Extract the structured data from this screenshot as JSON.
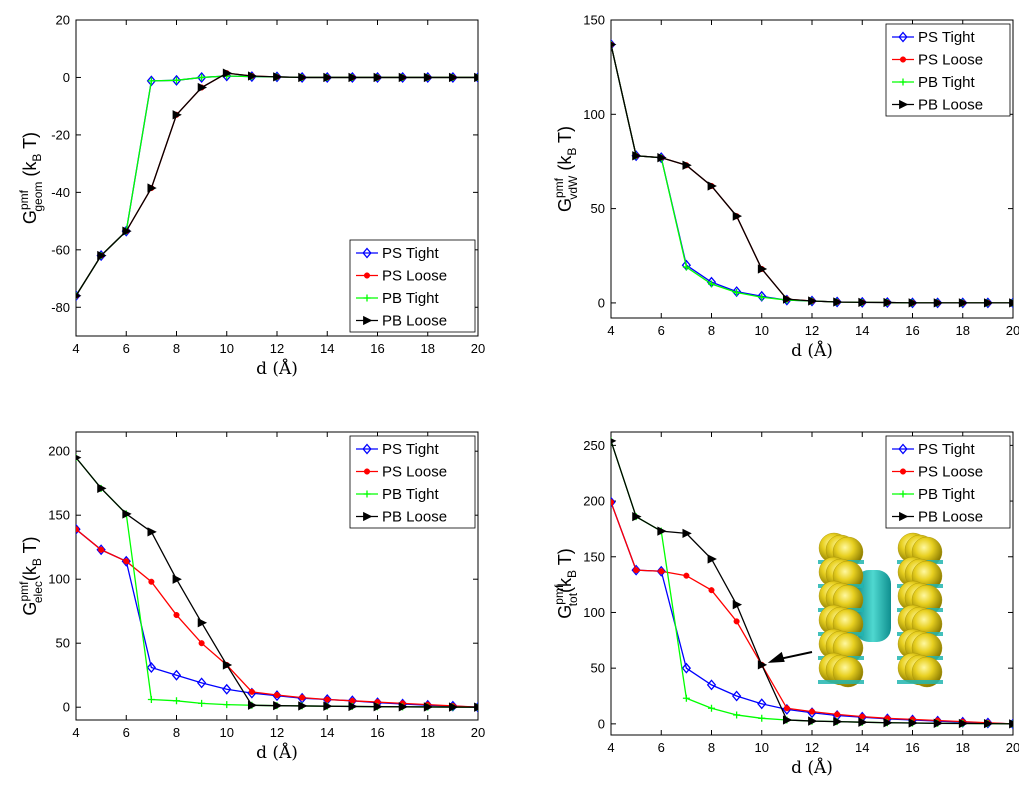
{
  "chart_data": [
    {
      "type": "line",
      "ylabel": {
        "main": "G",
        "sup": "pmf",
        "sub": "geom",
        "tail": " (k",
        "tail_sub": "B",
        "tail_end": " T)"
      },
      "xlabel": "d (Å)",
      "xlim": [
        4,
        20
      ],
      "ylim": [
        -90,
        20
      ],
      "xticks": [
        4,
        6,
        8,
        10,
        12,
        14,
        16,
        18,
        20
      ],
      "yticks": [
        -80,
        -60,
        -40,
        -20,
        0,
        20
      ],
      "grid": false,
      "legend": "bottom-right",
      "x": [
        4,
        5,
        6,
        7,
        8,
        9,
        10,
        11,
        12,
        13,
        14,
        15,
        16,
        17,
        18,
        19,
        20
      ],
      "series": [
        {
          "name": "PS Tight",
          "color": "#0000ff",
          "marker": "diamond",
          "values": [
            -76,
            -62,
            -53.5,
            -1.2,
            -1,
            0,
            0.5,
            0.3,
            0.2,
            0,
            0,
            0,
            0,
            0,
            0,
            0,
            0
          ]
        },
        {
          "name": "PS Loose",
          "color": "#ff0000",
          "marker": "dot",
          "values": [
            -76,
            -62,
            -53.5,
            -38.5,
            -13,
            -3.5,
            1.5,
            0.5,
            0.2,
            0,
            0,
            0,
            0,
            0,
            0,
            0,
            0
          ]
        },
        {
          "name": "PB Tight",
          "color": "#00ff00",
          "marker": "plus",
          "values": [
            -76,
            -62,
            -53.5,
            -1.2,
            -1,
            0,
            0.5,
            0.3,
            0.2,
            0,
            0,
            0,
            0,
            0,
            0,
            0,
            0
          ]
        },
        {
          "name": "PB Loose",
          "color": "#000000",
          "marker": "triangle",
          "values": [
            -76,
            -62,
            -53.5,
            -38.5,
            -13,
            -3.5,
            1.5,
            0.5,
            0.2,
            0,
            0,
            0,
            0,
            0,
            0,
            0,
            0
          ]
        }
      ]
    },
    {
      "type": "line",
      "ylabel": {
        "main": "G",
        "sup": "pmf",
        "sub": "vdW",
        "tail": " (k",
        "tail_sub": "B",
        "tail_end": " T)"
      },
      "xlabel": "d (Å)",
      "xlim": [
        4,
        20
      ],
      "ylim": [
        -8,
        150
      ],
      "xticks": [
        4,
        6,
        8,
        10,
        12,
        14,
        16,
        18,
        20
      ],
      "yticks": [
        0,
        50,
        100,
        150
      ],
      "grid": false,
      "legend": "top-right",
      "x": [
        4,
        5,
        6,
        7,
        8,
        9,
        10,
        11,
        12,
        13,
        14,
        15,
        16,
        17,
        18,
        19,
        20
      ],
      "series": [
        {
          "name": "PS Tight",
          "color": "#0000ff",
          "marker": "diamond",
          "values": [
            137,
            78,
            77,
            20,
            11,
            6,
            3.5,
            1.5,
            1,
            0.5,
            0.3,
            0.2,
            0,
            0,
            0,
            0,
            0
          ]
        },
        {
          "name": "PS Loose",
          "color": "#ff0000",
          "marker": "dot",
          "values": [
            137,
            78,
            77,
            73,
            62,
            46,
            18,
            2,
            1,
            0.5,
            0.3,
            0.2,
            0,
            0,
            0,
            0,
            0
          ]
        },
        {
          "name": "PB Tight",
          "color": "#00ff00",
          "marker": "plus",
          "values": [
            137,
            78,
            77,
            19,
            10,
            5.5,
            3,
            1.5,
            1,
            0.5,
            0.3,
            0.2,
            0,
            0,
            0,
            0,
            0
          ]
        },
        {
          "name": "PB Loose",
          "color": "#000000",
          "marker": "triangle",
          "values": [
            137,
            78,
            77,
            73,
            62,
            46,
            18,
            2,
            1,
            0.5,
            0.3,
            0.2,
            0,
            0,
            0,
            0,
            0
          ]
        }
      ]
    },
    {
      "type": "line",
      "ylabel": {
        "main": "G",
        "sup": "pmf",
        "sub": "elec",
        "tail": "(k",
        "tail_sub": "B",
        "tail_end": " T)"
      },
      "xlabel": "d (Å)",
      "xlim": [
        4,
        20
      ],
      "ylim": [
        -10,
        215
      ],
      "xticks": [
        4,
        6,
        8,
        10,
        12,
        14,
        16,
        18,
        20
      ],
      "yticks": [
        0,
        50,
        100,
        150,
        200
      ],
      "grid": false,
      "legend": "top-right",
      "x": [
        4,
        5,
        6,
        7,
        8,
        9,
        10,
        11,
        12,
        13,
        14,
        15,
        16,
        17,
        18,
        19,
        20
      ],
      "series": [
        {
          "name": "PS Tight",
          "color": "#0000ff",
          "marker": "diamond",
          "values": [
            139,
            123,
            114,
            31,
            25,
            19,
            14,
            11,
            9,
            7,
            6,
            5,
            3.5,
            2.5,
            1.5,
            0.8,
            0
          ]
        },
        {
          "name": "PS Loose",
          "color": "#ff0000",
          "marker": "dot",
          "values": [
            139,
            123,
            114,
            98,
            72,
            50,
            33,
            12,
            9.5,
            7.5,
            6,
            5,
            4,
            3,
            2,
            1,
            0
          ]
        },
        {
          "name": "PB Tight",
          "color": "#00ff00",
          "marker": "plus",
          "values": [
            195,
            171,
            151,
            6,
            5,
            3,
            2,
            1.5,
            1.2,
            1,
            0.8,
            0.6,
            0.4,
            0.3,
            0.2,
            0.1,
            0
          ]
        },
        {
          "name": "PB Loose",
          "color": "#000000",
          "marker": "triangle",
          "values": [
            195,
            171,
            151,
            137,
            100,
            66,
            33,
            1.5,
            1.2,
            1,
            0.8,
            0.6,
            0.4,
            0.3,
            0.2,
            0.1,
            0
          ]
        }
      ]
    },
    {
      "type": "line",
      "ylabel": {
        "main": "G",
        "sup": "pmf",
        "sub": "tot",
        "tail": "(k",
        "tail_sub": "B",
        "tail_end": " T)"
      },
      "xlabel": "d (Å)",
      "xlim": [
        4,
        20
      ],
      "ylim": [
        -10,
        262
      ],
      "xticks": [
        4,
        6,
        8,
        10,
        12,
        14,
        16,
        18,
        20
      ],
      "yticks": [
        0,
        50,
        100,
        150,
        200,
        250
      ],
      "grid": false,
      "legend": "top-right",
      "annotation": {
        "type": "arrow",
        "points_to": [
          10,
          53
        ],
        "inset": "molecular-structure-image"
      },
      "x": [
        4,
        5,
        6,
        7,
        8,
        9,
        10,
        11,
        12,
        13,
        14,
        15,
        16,
        17,
        18,
        19,
        20
      ],
      "series": [
        {
          "name": "PS Tight",
          "color": "#0000ff",
          "marker": "diamond",
          "values": [
            199,
            138,
            137,
            50,
            35,
            25,
            18,
            13,
            10,
            7.5,
            6,
            4.5,
            3.5,
            2.5,
            1.5,
            0.8,
            0
          ]
        },
        {
          "name": "PS Loose",
          "color": "#ff0000",
          "marker": "dot",
          "values": [
            199,
            138,
            137,
            133,
            120,
            92,
            53,
            14,
            11,
            8.5,
            6.5,
            5,
            4,
            3,
            2,
            1,
            0
          ]
        },
        {
          "name": "PB Tight",
          "color": "#00ff00",
          "marker": "plus",
          "values": [
            254,
            186,
            173,
            23,
            14,
            8,
            5,
            3.5,
            2.5,
            2,
            1.5,
            1,
            0.8,
            0.5,
            0.3,
            0.2,
            0
          ]
        },
        {
          "name": "PB Loose",
          "color": "#000000",
          "marker": "triangle",
          "values": [
            254,
            186,
            173,
            171,
            148,
            107,
            53,
            3.5,
            2.5,
            2,
            1.5,
            1,
            0.8,
            0.5,
            0.3,
            0.2,
            0
          ]
        }
      ]
    }
  ]
}
